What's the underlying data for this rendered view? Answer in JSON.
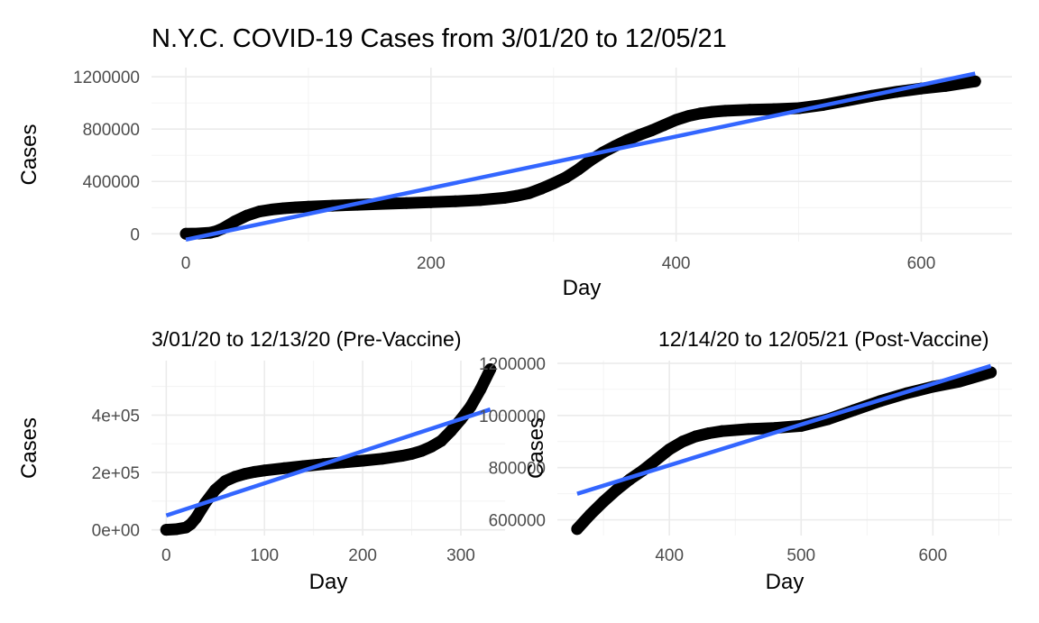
{
  "chart_data": [
    {
      "type": "scatter",
      "title": "N.Y.C. COVID-19 Cases from 3/01/20 to 12/05/21",
      "xlabel": "Day",
      "ylabel": "Cases",
      "xlim": [
        -28,
        674
      ],
      "ylim": [
        -60000,
        1270000
      ],
      "x_ticks": [
        0,
        200,
        400,
        600
      ],
      "y_ticks": [
        0,
        400000,
        800000,
        1200000
      ],
      "x_tick_labels": [
        "0",
        "200",
        "400",
        "600"
      ],
      "y_tick_labels": [
        "0",
        "400000",
        "800000",
        "1200000"
      ],
      "grid": true,
      "series": [
        {
          "kind": "points",
          "color": "#000000",
          "x": [
            0,
            10,
            20,
            25,
            30,
            40,
            50,
            60,
            70,
            80,
            90,
            100,
            120,
            140,
            160,
            180,
            200,
            220,
            240,
            260,
            270,
            280,
            290,
            300,
            310,
            320,
            330,
            340,
            350,
            360,
            370,
            380,
            390,
            400,
            410,
            420,
            430,
            440,
            460,
            480,
            500,
            520,
            540,
            560,
            580,
            600,
            620,
            644
          ],
          "y": [
            0,
            2000,
            8000,
            20000,
            40000,
            95000,
            140000,
            170000,
            185000,
            195000,
            202000,
            207000,
            215000,
            222000,
            229000,
            235000,
            241000,
            248000,
            258000,
            275000,
            290000,
            310000,
            345000,
            385000,
            430000,
            490000,
            560000,
            620000,
            670000,
            715000,
            755000,
            790000,
            830000,
            870000,
            900000,
            920000,
            932000,
            940000,
            948000,
            952000,
            960000,
            985000,
            1020000,
            1055000,
            1085000,
            1110000,
            1130000,
            1165000
          ]
        },
        {
          "kind": "linear-fit",
          "color": "#3366ff",
          "x": [
            0,
            644
          ],
          "y": [
            -45000,
            1225000
          ]
        }
      ]
    },
    {
      "type": "scatter",
      "title": "3/01/20 to 12/13/20 (Pre-Vaccine)",
      "xlabel": "Day",
      "ylabel": "Cases",
      "xlim": [
        -15,
        345
      ],
      "ylim": [
        -20000,
        590000
      ],
      "x_ticks": [
        0,
        100,
        200,
        300
      ],
      "y_ticks": [
        0,
        200000,
        400000
      ],
      "x_tick_labels": [
        "0",
        "100",
        "200",
        "300"
      ],
      "y_tick_labels": [
        "0e+00",
        "2e+05",
        "4e+05"
      ],
      "grid": true,
      "series": [
        {
          "kind": "points",
          "color": "#000000",
          "x": [
            0,
            10,
            20,
            25,
            30,
            40,
            50,
            60,
            70,
            80,
            90,
            100,
            120,
            140,
            160,
            180,
            200,
            220,
            240,
            250,
            260,
            270,
            280,
            290,
            300,
            310,
            320,
            330
          ],
          "y": [
            0,
            2000,
            8000,
            20000,
            40000,
            95000,
            140000,
            170000,
            185000,
            195000,
            202000,
            207000,
            215000,
            222000,
            229000,
            235000,
            241000,
            248000,
            258000,
            265000,
            275000,
            290000,
            310000,
            345000,
            385000,
            430000,
            490000,
            560000
          ]
        },
        {
          "kind": "linear-fit",
          "color": "#3366ff",
          "x": [
            0,
            330
          ],
          "y": [
            50000,
            420000
          ]
        }
      ]
    },
    {
      "type": "scatter",
      "title": "12/14/20 to 12/05/21 (Post-Vaccine)",
      "xlabel": "Day",
      "ylabel": "Cases",
      "xlim": [
        315,
        660
      ],
      "ylim": [
        540000,
        1210000
      ],
      "x_ticks": [
        400,
        500,
        600
      ],
      "y_ticks": [
        600000,
        800000,
        1000000,
        1200000
      ],
      "x_tick_labels": [
        "400",
        "500",
        "600"
      ],
      "y_tick_labels": [
        "600000",
        "800000",
        "1000000",
        "1200000"
      ],
      "grid": true,
      "series": [
        {
          "kind": "points",
          "color": "#000000",
          "x": [
            330,
            340,
            350,
            360,
            370,
            380,
            390,
            400,
            410,
            420,
            430,
            440,
            460,
            480,
            500,
            520,
            540,
            560,
            580,
            600,
            620,
            644
          ],
          "y": [
            565000,
            620000,
            670000,
            715000,
            755000,
            790000,
            830000,
            870000,
            900000,
            920000,
            932000,
            940000,
            948000,
            952000,
            960000,
            985000,
            1020000,
            1055000,
            1085000,
            1110000,
            1130000,
            1165000
          ]
        },
        {
          "kind": "linear-fit",
          "color": "#3366ff",
          "x": [
            330,
            644
          ],
          "y": [
            700000,
            1190000
          ]
        }
      ]
    }
  ]
}
